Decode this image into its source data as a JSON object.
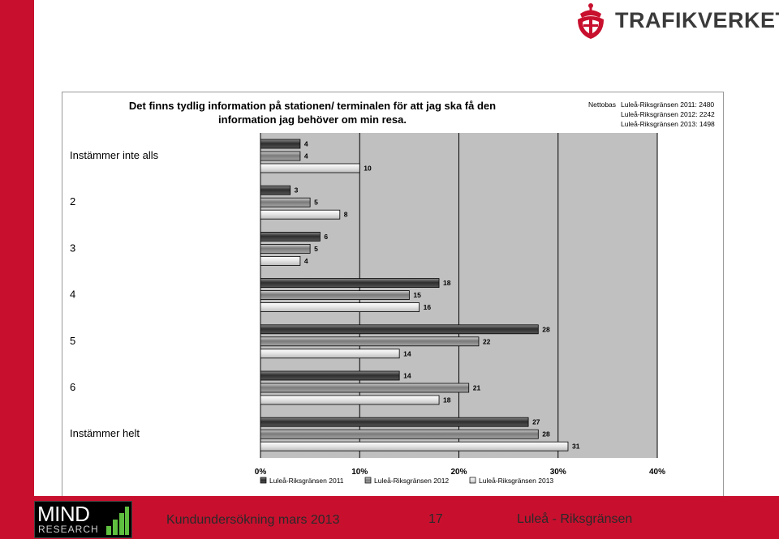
{
  "logo": {
    "name": "TRAFIKVERKET",
    "icon": "crown-emblem-icon"
  },
  "footer": {
    "logo_word": "MIND",
    "logo_sub": "RESEARCH",
    "survey": "Kundundersökning mars 2013",
    "page_number": "17",
    "route": "Luleå - Riksgränsen"
  },
  "colors": {
    "brand_red": "#c8102e",
    "plot_bg": "#c0c0c0",
    "series_2011": "#3c3c3c",
    "series_2012": "#8c8c8c",
    "series_2013": "#f2f2f2"
  },
  "chart_data": {
    "type": "bar",
    "orientation": "horizontal",
    "title": "Det finns tydlig information på stationen/ terminalen för att jag ska få den information jag behöver om min resa.",
    "nettobas_label": "Nettobas",
    "nettobas": [
      {
        "name": "Luleå-Riksgränsen 2011",
        "n": "2480"
      },
      {
        "name": "Luleå-Riksgränsen 2012",
        "n": "2242"
      },
      {
        "name": "Luleå-Riksgränsen 2013",
        "n": "1498"
      }
    ],
    "categories": [
      "Instämmer inte alls",
      "2",
      "3",
      "4",
      "5",
      "6",
      "Instämmer helt"
    ],
    "series": [
      {
        "name": "Luleå-Riksgränsen 2011",
        "values": [
          4,
          3,
          6,
          18,
          28,
          14,
          27
        ]
      },
      {
        "name": "Luleå-Riksgränsen 2012",
        "values": [
          4,
          5,
          5,
          15,
          22,
          21,
          28
        ]
      },
      {
        "name": "Luleå-Riksgränsen 2013",
        "values": [
          10,
          8,
          4,
          16,
          14,
          18,
          31
        ]
      }
    ],
    "xlim": [
      0,
      40
    ],
    "x_ticks": [
      "0%",
      "10%",
      "20%",
      "30%",
      "40%"
    ],
    "grid": true,
    "legend": "bottom"
  }
}
